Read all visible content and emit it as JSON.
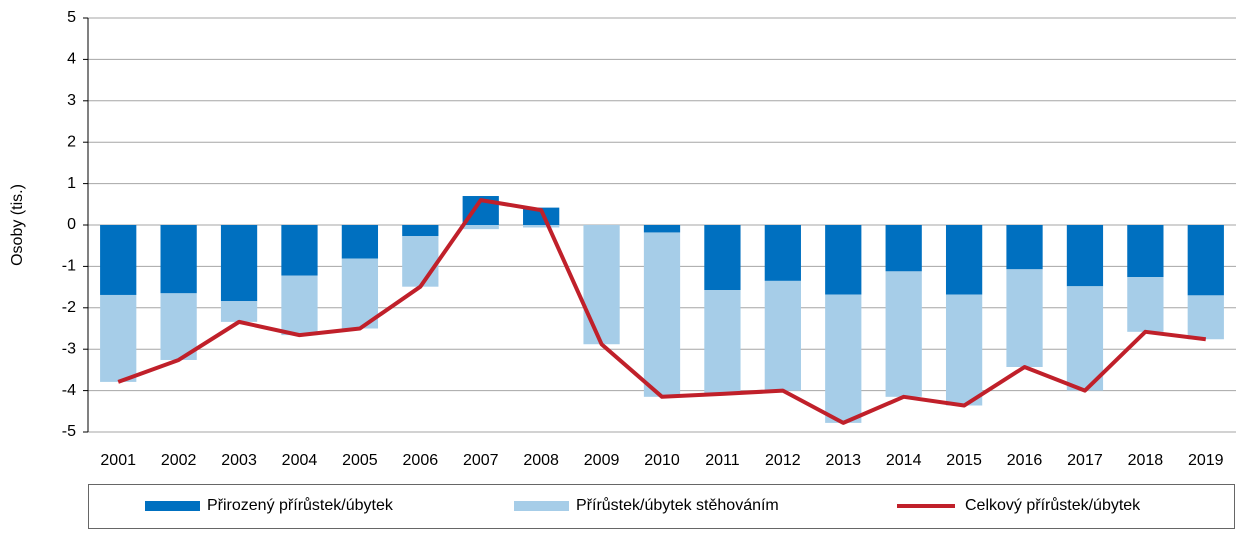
{
  "chart_data": {
    "type": "bar",
    "stacked": true,
    "y_label": "Osoby (tis.)",
    "categories": [
      "2001",
      "2002",
      "2003",
      "2004",
      "2005",
      "2006",
      "2007",
      "2008",
      "2009",
      "2010",
      "2011",
      "2012",
      "2013",
      "2014",
      "2015",
      "2016",
      "2017",
      "2018",
      "2019"
    ],
    "series": [
      {
        "name": "Přirozený přírůstek/úbytek",
        "type": "bar",
        "color": "#0070c0",
        "values": [
          -1.69,
          -1.65,
          -1.84,
          -1.22,
          -0.81,
          -0.27,
          0.7,
          0.42,
          0,
          -0.18,
          -1.57,
          -1.35,
          -1.68,
          -1.12,
          -1.68,
          -1.07,
          -1.48,
          -1.26,
          -1.7
        ]
      },
      {
        "name": "Přírůstek/úbytek stěhováním",
        "type": "bar",
        "color": "#a6cde8",
        "values": [
          -2.1,
          -1.61,
          -0.5,
          -1.44,
          -1.69,
          -1.22,
          -0.1,
          -0.06,
          -2.88,
          -3.97,
          -2.51,
          -2.65,
          -3.1,
          -3.03,
          -2.68,
          -2.36,
          -2.52,
          -1.32,
          -1.06
        ]
      },
      {
        "name": "Celkový přírůstek/úbytek",
        "type": "line",
        "color": "#c0202a",
        "values": [
          -3.79,
          -3.26,
          -2.34,
          -2.66,
          -2.5,
          -1.49,
          0.6,
          0.36,
          -2.88,
          -4.15,
          -4.08,
          -4.0,
          -4.78,
          -4.15,
          -4.36,
          -3.43,
          -4.0,
          -2.58,
          -2.76
        ]
      }
    ],
    "ylim": [
      -5,
      5
    ],
    "yticks": [
      -5,
      -4,
      -3,
      -2,
      -1,
      0,
      1,
      2,
      3,
      4,
      5
    ],
    "grid": true,
    "legend": "bottom"
  }
}
